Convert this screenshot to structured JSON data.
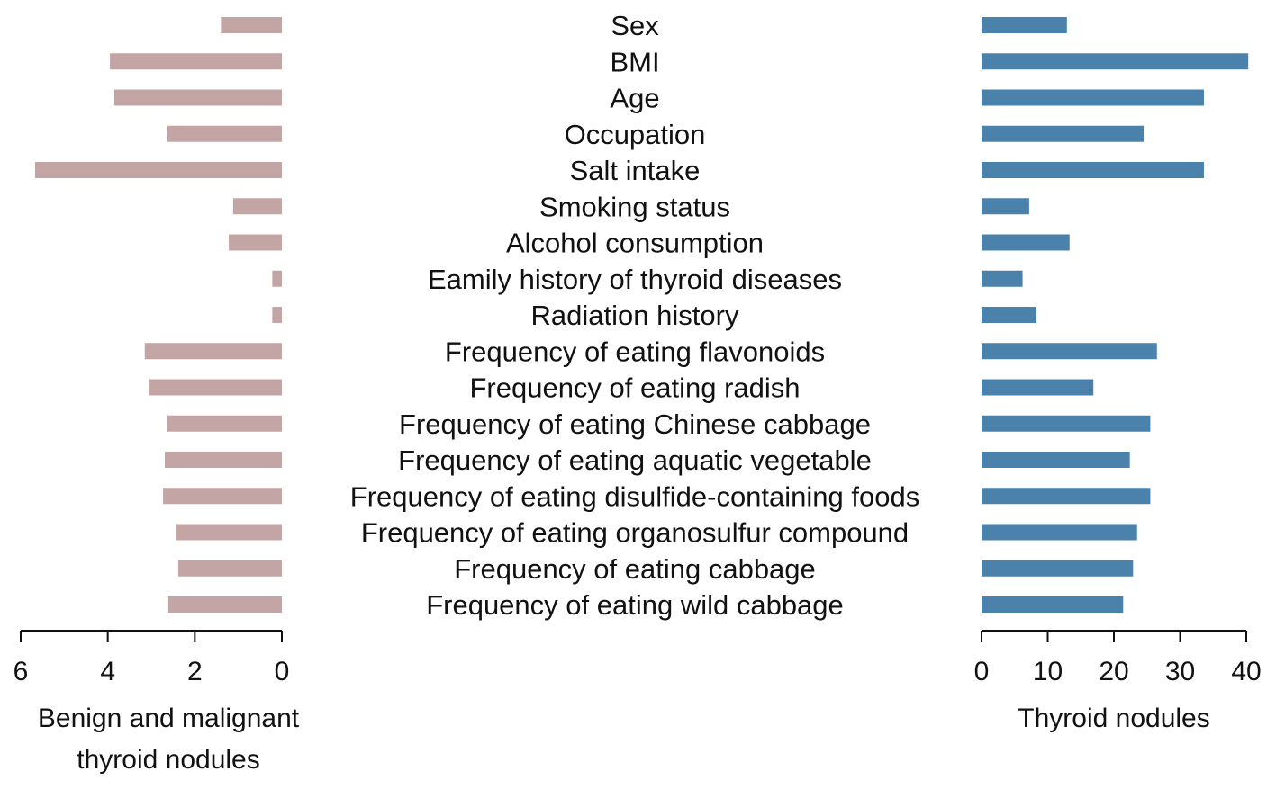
{
  "chart_data": {
    "type": "bar",
    "categories": [
      "Sex",
      "BMI",
      "Age",
      "Occupation",
      "Salt intake",
      "Smoking status",
      "Alcohol consumption",
      "Eamily history of thyroid diseases",
      "Radiation history",
      "Frequency of eating flavonoids",
      "Frequency of eating radish",
      "Frequency of eating Chinese cabbage",
      "Frequency of eating aquatic vegetable",
      "Frequency of eating disulfide-containing foods",
      "Frequency of eating organosulfur compound",
      "Frequency of eating cabbage",
      "Frequency of eating wild cabbage"
    ],
    "series": [
      {
        "xlabel_lines": [
          "Benign and malignant",
          "thyroid nodules"
        ],
        "values": [
          1.4,
          3.95,
          3.85,
          2.63,
          5.67,
          1.12,
          1.22,
          0.22,
          0.22,
          3.15,
          3.04,
          2.63,
          2.69,
          2.73,
          2.42,
          2.38,
          2.61
        ],
        "xlim": [
          0,
          6
        ],
        "ticks": [
          6,
          4,
          2,
          0
        ],
        "reversed": true,
        "color": "#c4a5a5"
      },
      {
        "xlabel_lines": [
          "Thyroid nodules"
        ],
        "values": [
          12.9,
          40.3,
          33.6,
          24.5,
          33.6,
          7.2,
          13.3,
          6.2,
          8.3,
          26.5,
          16.9,
          25.5,
          22.4,
          25.5,
          23.5,
          22.9,
          21.4
        ],
        "xlim": [
          0,
          40
        ],
        "ticks": [
          0,
          10,
          20,
          30,
          40
        ],
        "reversed": false,
        "color": "#4a82ab"
      }
    ]
  }
}
